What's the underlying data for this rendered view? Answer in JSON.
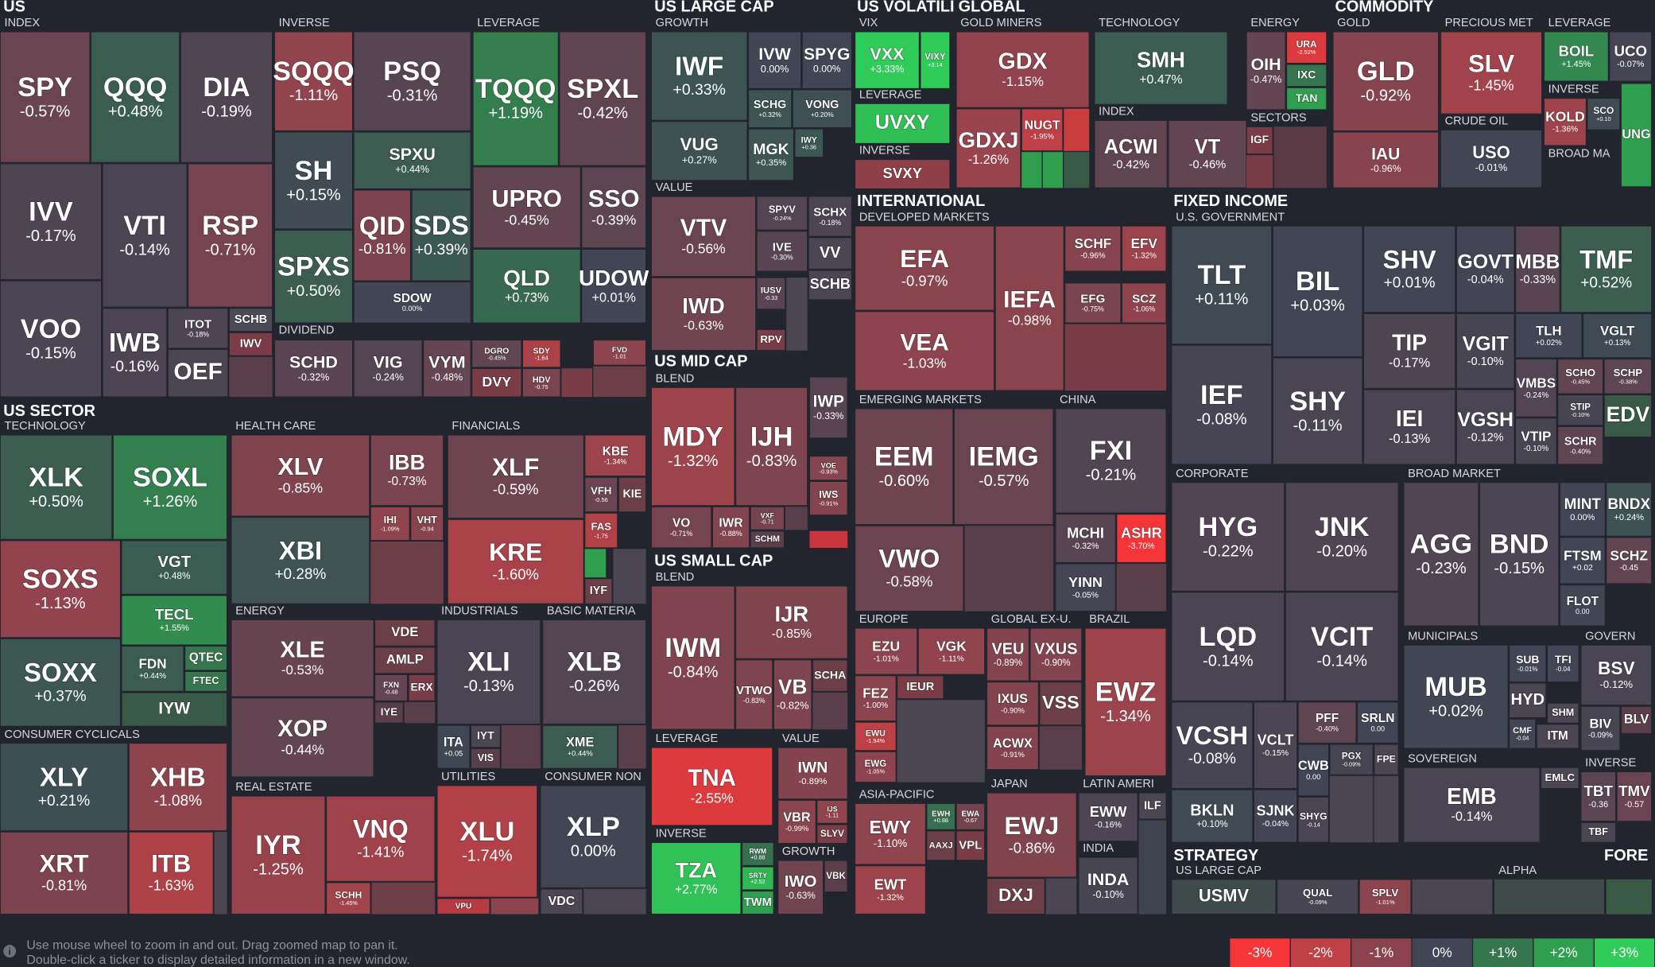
{
  "headers": [
    "US",
    "US LARGE CAP",
    "US VOLATILI",
    "GLOBAL",
    "COMMODITY",
    "US SECTOR",
    "US MID CAP",
    "US SMALL CAP",
    "INTERNATIONAL",
    "FIXED INCOME",
    "STRATEGY",
    "FORE"
  ],
  "groups": [
    "INDEX",
    "INVERSE",
    "LEVERAGE",
    "DIVIDEND",
    "GROWTH",
    "VALUE",
    "VIX",
    "LEVERAGE",
    "INVERSE",
    "GOLD MINERS",
    "TECHNOLOGY",
    "INDEX",
    "ENERGY",
    "SECTORS",
    "GOLD",
    "PRECIOUS MET",
    "CRUDE OIL",
    "LEVERAGE",
    "INVERSE",
    "BROAD MA",
    "TECHNOLOGY",
    "HEALTH CARE",
    "FINANCIALS",
    "ENERGY",
    "INDUSTRIALS",
    "BASIC MATERIA",
    "CONSUMER CYCLICALS",
    "REAL ESTATE",
    "UTILITIES",
    "CONSUMER NON",
    "BLEND",
    "BLEND",
    "LEVERAGE",
    "VALUE",
    "INVERSE",
    "GROWTH",
    "DEVELOPED MARKETS",
    "EMERGING MARKETS",
    "CHINA",
    "EUROPE",
    "GLOBAL EX-U.",
    "BRAZIL",
    "ASIA-PACIFIC",
    "JAPAN",
    "LATIN AMERI",
    "INDIA",
    "U.S. GOVERNMENT",
    "CORPORATE",
    "BROAD MARKET",
    "MUNICIPALS",
    "GOVERN",
    "SOVEREIGN",
    "INVERSE",
    "US LARGE CAP",
    "ALPHA"
  ],
  "tiles": [
    {
      "ticker": "SPY",
      "change": "-0.57%"
    },
    {
      "ticker": "QQQ",
      "change": "+0.48%"
    },
    {
      "ticker": "DIA",
      "change": "-0.19%"
    },
    {
      "ticker": "IVV",
      "change": "-0.17%"
    },
    {
      "ticker": "VTI",
      "change": "-0.14%"
    },
    {
      "ticker": "RSP",
      "change": "-0.71%"
    },
    {
      "ticker": "VOO",
      "change": "-0.15%"
    },
    {
      "ticker": "IWB",
      "change": "-0.16%"
    },
    {
      "ticker": "ITOT",
      "change": "-0.18%"
    },
    {
      "ticker": "SCHB"
    },
    {
      "ticker": "IWV"
    },
    {
      "ticker": "OEF"
    },
    {
      "ticker": "SQQQ",
      "change": "-1.11%"
    },
    {
      "ticker": "PSQ",
      "change": "-0.31%"
    },
    {
      "ticker": "SH",
      "change": "+0.15%"
    },
    {
      "ticker": "SPXU",
      "change": "+0.44%"
    },
    {
      "ticker": "QID",
      "change": "-0.81%"
    },
    {
      "ticker": "SDS",
      "change": "+0.39%"
    },
    {
      "ticker": "SPXS",
      "change": "+0.50%"
    },
    {
      "ticker": "SDOW",
      "change": "0.00%"
    },
    {
      "ticker": "TQQQ",
      "change": "+1.19%"
    },
    {
      "ticker": "SPXL",
      "change": "-0.42%"
    },
    {
      "ticker": "UPRO",
      "change": "-0.45%"
    },
    {
      "ticker": "SSO",
      "change": "-0.39%"
    },
    {
      "ticker": "QLD",
      "change": "+0.73%"
    },
    {
      "ticker": "UDOW",
      "change": "+0.01%"
    },
    {
      "ticker": "SCHD",
      "change": "-0.32%"
    },
    {
      "ticker": "VIG",
      "change": "-0.24%"
    },
    {
      "ticker": "VYM",
      "change": "-0.48%"
    },
    {
      "ticker": "DGRO",
      "change": "-0.45%"
    },
    {
      "ticker": "SDY",
      "change": "-1.64"
    },
    {
      "ticker": "DVY"
    },
    {
      "ticker": "HDV",
      "change": "-0.75"
    },
    {
      "ticker": "FVD",
      "change": "-1.01"
    },
    {
      "ticker": "IWF",
      "change": "+0.33%"
    },
    {
      "ticker": "IVW",
      "change": "0.00%"
    },
    {
      "ticker": "SPYG",
      "change": "0.00%"
    },
    {
      "ticker": "VUG",
      "change": "+0.27%"
    },
    {
      "ticker": "SCHG",
      "change": "+0.32%"
    },
    {
      "ticker": "VONG",
      "change": "+0.20%"
    },
    {
      "ticker": "MGK",
      "change": "+0.35%"
    },
    {
      "ticker": "IWY",
      "change": "+0.36"
    },
    {
      "ticker": "VTV",
      "change": "-0.56%"
    },
    {
      "ticker": "SPYV",
      "change": "-0.24%"
    },
    {
      "ticker": "SCHX",
      "change": "-0.18%"
    },
    {
      "ticker": "IVE",
      "change": "-0.30%"
    },
    {
      "ticker": "VV"
    },
    {
      "ticker": "SCHB"
    },
    {
      "ticker": "IWD",
      "change": "-0.63%"
    },
    {
      "ticker": "IUSV",
      "change": "-0.33"
    },
    {
      "ticker": "RPV"
    },
    {
      "ticker": "VXX",
      "change": "+3.33%"
    },
    {
      "ticker": "VIXY",
      "change": "+3.14"
    },
    {
      "ticker": "UVXY"
    },
    {
      "ticker": "SVXY"
    },
    {
      "ticker": "GDX",
      "change": "-1.15%"
    },
    {
      "ticker": "GDXJ",
      "change": "-1.26%"
    },
    {
      "ticker": "NUGT",
      "change": "-1.95%"
    },
    {
      "ticker": "SMH",
      "change": "+0.47%"
    },
    {
      "ticker": "ACWI",
      "change": "-0.42%"
    },
    {
      "ticker": "VT",
      "change": "-0.46%"
    },
    {
      "ticker": "OIH",
      "change": "-0.47%"
    },
    {
      "ticker": "URA",
      "change": "-2.52%"
    },
    {
      "ticker": "IXC"
    },
    {
      "ticker": "TAN"
    },
    {
      "ticker": "IGF"
    },
    {
      "ticker": "GLD",
      "change": "-0.92%"
    },
    {
      "ticker": "IAU",
      "change": "-0.96%"
    },
    {
      "ticker": "SLV",
      "change": "-1.45%"
    },
    {
      "ticker": "USO",
      "change": "-0.01%"
    },
    {
      "ticker": "BOIL",
      "change": "+1.45%"
    },
    {
      "ticker": "UCO",
      "change": "-0.07%"
    },
    {
      "ticker": "KOLD",
      "change": "-1.36%"
    },
    {
      "ticker": "SCO",
      "change": "+0.10"
    },
    {
      "ticker": "UNG"
    },
    {
      "ticker": "XLK",
      "change": "+0.50%"
    },
    {
      "ticker": "SOXL",
      "change": "+1.26%"
    },
    {
      "ticker": "SOXS",
      "change": "-1.13%"
    },
    {
      "ticker": "VGT",
      "change": "+0.48%"
    },
    {
      "ticker": "TECL",
      "change": "+1.55%"
    },
    {
      "ticker": "SOXX",
      "change": "+0.37%"
    },
    {
      "ticker": "FDN",
      "change": "+0.44%"
    },
    {
      "ticker": "QTEC"
    },
    {
      "ticker": "FTEC"
    },
    {
      "ticker": "IYW"
    },
    {
      "ticker": "XLV",
      "change": "-0.85%"
    },
    {
      "ticker": "IBB",
      "change": "-0.73%"
    },
    {
      "ticker": "XBI",
      "change": "+0.28%"
    },
    {
      "ticker": "IHI",
      "change": "-1.09%"
    },
    {
      "ticker": "VHT",
      "change": "-0.94"
    },
    {
      "ticker": "XLF",
      "change": "-0.59%"
    },
    {
      "ticker": "KBE",
      "change": "-1.34%"
    },
    {
      "ticker": "VFH",
      "change": "-0.56"
    },
    {
      "ticker": "KIE"
    },
    {
      "ticker": "KRE",
      "change": "-1.60%"
    },
    {
      "ticker": "FAS",
      "change": "-1.75"
    },
    {
      "ticker": "IYF"
    },
    {
      "ticker": "XLE",
      "change": "-0.53%"
    },
    {
      "ticker": "VDE"
    },
    {
      "ticker": "AMLP"
    },
    {
      "ticker": "FXN",
      "change": "-0.48"
    },
    {
      "ticker": "ERX"
    },
    {
      "ticker": "IYE"
    },
    {
      "ticker": "XOP",
      "change": "-0.44%"
    },
    {
      "ticker": "XLI",
      "change": "-0.13%"
    },
    {
      "ticker": "ITA",
      "change": "+0.05"
    },
    {
      "ticker": "IYT"
    },
    {
      "ticker": "VIS"
    },
    {
      "ticker": "XLB",
      "change": "-0.26%"
    },
    {
      "ticker": "XME",
      "change": "+0.44%"
    },
    {
      "ticker": "XLY",
      "change": "+0.21%"
    },
    {
      "ticker": "XHB",
      "change": "-1.08%"
    },
    {
      "ticker": "XRT",
      "change": "-0.81%"
    },
    {
      "ticker": "ITB",
      "change": "-1.63%"
    },
    {
      "ticker": "IYR",
      "change": "-1.25%"
    },
    {
      "ticker": "VNQ",
      "change": "-1.41%"
    },
    {
      "ticker": "SCHH",
      "change": "-1.45%"
    },
    {
      "ticker": "XLU",
      "change": "-1.74%"
    },
    {
      "ticker": "VPU"
    },
    {
      "ticker": "XLP",
      "change": "0.00%"
    },
    {
      "ticker": "VDC"
    },
    {
      "ticker": "MDY",
      "change": "-1.32%"
    },
    {
      "ticker": "IJH",
      "change": "-0.83%"
    },
    {
      "ticker": "IWP",
      "change": "-0.33%"
    },
    {
      "ticker": "VOE",
      "change": "-0.93%"
    },
    {
      "ticker": "IWS",
      "change": "-0.91%"
    },
    {
      "ticker": "VO",
      "change": "-0.71%"
    },
    {
      "ticker": "IWR",
      "change": "-0.88%"
    },
    {
      "ticker": "VXF",
      "change": "-0.71"
    },
    {
      "ticker": "SCHM"
    },
    {
      "ticker": "IWM",
      "change": "-0.84%"
    },
    {
      "ticker": "IJR",
      "change": "-0.85%"
    },
    {
      "ticker": "VTWO",
      "change": "-0.83%"
    },
    {
      "ticker": "VB",
      "change": "-0.82%"
    },
    {
      "ticker": "SCHA"
    },
    {
      "ticker": "TNA",
      "change": "-2.55%"
    },
    {
      "ticker": "IWN",
      "change": "-0.89%"
    },
    {
      "ticker": "VBR",
      "change": "-0.99%"
    },
    {
      "ticker": "IJS",
      "change": "-1.11"
    },
    {
      "ticker": "SLYV"
    },
    {
      "ticker": "TZA",
      "change": "+2.77%"
    },
    {
      "ticker": "RWM",
      "change": "+0.88"
    },
    {
      "ticker": "SRTY",
      "change": "+2.52"
    },
    {
      "ticker": "TWM"
    },
    {
      "ticker": "IWO",
      "change": "-0.63%"
    },
    {
      "ticker": "VBK"
    },
    {
      "ticker": "EFA",
      "change": "-0.97%"
    },
    {
      "ticker": "VEA",
      "change": "-1.03%"
    },
    {
      "ticker": "IEFA",
      "change": "-0.98%"
    },
    {
      "ticker": "SCHF",
      "change": "-0.96%"
    },
    {
      "ticker": "EFV",
      "change": "-1.32%"
    },
    {
      "ticker": "EFG",
      "change": "-0.75%"
    },
    {
      "ticker": "SCZ",
      "change": "-1.06%"
    },
    {
      "ticker": "EEM",
      "change": "-0.60%"
    },
    {
      "ticker": "IEMG",
      "change": "-0.57%"
    },
    {
      "ticker": "VWO",
      "change": "-0.58%"
    },
    {
      "ticker": "FXI",
      "change": "-0.21%"
    },
    {
      "ticker": "MCHI",
      "change": "-0.32%"
    },
    {
      "ticker": "ASHR",
      "change": "-3.70%"
    },
    {
      "ticker": "YINN",
      "change": "-0.05%"
    },
    {
      "ticker": "EZU",
      "change": "-1.01%"
    },
    {
      "ticker": "VGK",
      "change": "-1.11%"
    },
    {
      "ticker": "FEZ",
      "change": "-1.00%"
    },
    {
      "ticker": "IEUR"
    },
    {
      "ticker": "EWU",
      "change": "-1.94%"
    },
    {
      "ticker": "EWG",
      "change": "-1.05%"
    },
    {
      "ticker": "VEU",
      "change": "-0.89%"
    },
    {
      "ticker": "VXUS",
      "change": "-0.90%"
    },
    {
      "ticker": "IXUS",
      "change": "-0.90%"
    },
    {
      "ticker": "VSS"
    },
    {
      "ticker": "ACWX",
      "change": "-0.91%"
    },
    {
      "ticker": "EWZ",
      "change": "-1.34%"
    },
    {
      "ticker": "EWY",
      "change": "-1.10%"
    },
    {
      "ticker": "EWH",
      "change": "+0.88"
    },
    {
      "ticker": "EWA",
      "change": "-0.67"
    },
    {
      "ticker": "AAXJ"
    },
    {
      "ticker": "VPL"
    },
    {
      "ticker": "EWT",
      "change": "-1.32%"
    },
    {
      "ticker": "EWJ",
      "change": "-0.86%"
    },
    {
      "ticker": "DXJ"
    },
    {
      "ticker": "EWW",
      "change": "-0.16%"
    },
    {
      "ticker": "ILF"
    },
    {
      "ticker": "INDA",
      "change": "-0.10%"
    },
    {
      "ticker": "TLT",
      "change": "+0.11%"
    },
    {
      "ticker": "BIL",
      "change": "+0.03%"
    },
    {
      "ticker": "SHV",
      "change": "+0.01%"
    },
    {
      "ticker": "GOVT",
      "change": "-0.04%"
    },
    {
      "ticker": "MBB",
      "change": "-0.33%"
    },
    {
      "ticker": "TMF",
      "change": "+0.52%"
    },
    {
      "ticker": "IEF",
      "change": "-0.08%"
    },
    {
      "ticker": "SHY",
      "change": "-0.11%"
    },
    {
      "ticker": "TIP",
      "change": "-0.17%"
    },
    {
      "ticker": "IEI",
      "change": "-0.13%"
    },
    {
      "ticker": "VGIT",
      "change": "-0.10%"
    },
    {
      "ticker": "TLH",
      "change": "+0.02%"
    },
    {
      "ticker": "VGLT",
      "change": "+0.13%"
    },
    {
      "ticker": "VGSH",
      "change": "-0.12%"
    },
    {
      "ticker": "VMBS",
      "change": "-0.24%"
    },
    {
      "ticker": "SCHO",
      "change": "-0.45%"
    },
    {
      "ticker": "SCHP",
      "change": "-0.38%"
    },
    {
      "ticker": "STIP",
      "change": "-0.10%"
    },
    {
      "ticker": "EDV"
    },
    {
      "ticker": "VTIP",
      "change": "-0.10%"
    },
    {
      "ticker": "SCHR",
      "change": "-0.40%"
    },
    {
      "ticker": "HYG",
      "change": "-0.22%"
    },
    {
      "ticker": "JNK",
      "change": "-0.20%"
    },
    {
      "ticker": "LQD",
      "change": "-0.14%"
    },
    {
      "ticker": "VCIT",
      "change": "-0.14%"
    },
    {
      "ticker": "VCSH",
      "change": "-0.08%"
    },
    {
      "ticker": "VCLT",
      "change": "-0.15%"
    },
    {
      "ticker": "PFF",
      "change": "-0.40%"
    },
    {
      "ticker": "SRLN",
      "change": "0.00"
    },
    {
      "ticker": "CWB",
      "change": "0.00"
    },
    {
      "ticker": "PGX",
      "change": "-0.09%"
    },
    {
      "ticker": "FPE"
    },
    {
      "ticker": "SJNK",
      "change": "-0.04%"
    },
    {
      "ticker": "SHYG",
      "change": "-0.14"
    },
    {
      "ticker": "BKLN",
      "change": "+0.10%"
    },
    {
      "ticker": "AGG",
      "change": "-0.23%"
    },
    {
      "ticker": "BND",
      "change": "-0.15%"
    },
    {
      "ticker": "MINT",
      "change": "0.00%"
    },
    {
      "ticker": "BNDX",
      "change": "+0.24%"
    },
    {
      "ticker": "FTSM",
      "change": "+0.02"
    },
    {
      "ticker": "SCHZ",
      "change": "-0.45"
    },
    {
      "ticker": "FLOT",
      "change": "0.00"
    },
    {
      "ticker": "MUB",
      "change": "+0.02%"
    },
    {
      "ticker": "SUB",
      "change": "-0.01%"
    },
    {
      "ticker": "TFI",
      "change": "-0.04"
    },
    {
      "ticker": "HYD"
    },
    {
      "ticker": "SHM"
    },
    {
      "ticker": "CMF",
      "change": "-0.04"
    },
    {
      "ticker": "ITM"
    },
    {
      "ticker": "BSV",
      "change": "-0.12%"
    },
    {
      "ticker": "BIV",
      "change": "-0.09%"
    },
    {
      "ticker": "BLV"
    },
    {
      "ticker": "EMB",
      "change": "-0.14%"
    },
    {
      "ticker": "EMLC"
    },
    {
      "ticker": "TBT",
      "change": "-0.36"
    },
    {
      "ticker": "TMV",
      "change": "-0.57"
    },
    {
      "ticker": "TBF"
    },
    {
      "ticker": "USMV"
    },
    {
      "ticker": "QUAL",
      "change": "-0.09%"
    },
    {
      "ticker": "SPLV",
      "change": "-1.01%"
    }
  ],
  "footer": {
    "hint": [
      "Use mouse wheel to zoom in and out. Drag zoomed map to pan it.",
      "Double-click a ticker to display detailed information in a new window."
    ],
    "legend": [
      "-3%",
      "-2%",
      "-1%",
      "0%",
      "+1%",
      "+2%",
      "+3%"
    ]
  }
}
